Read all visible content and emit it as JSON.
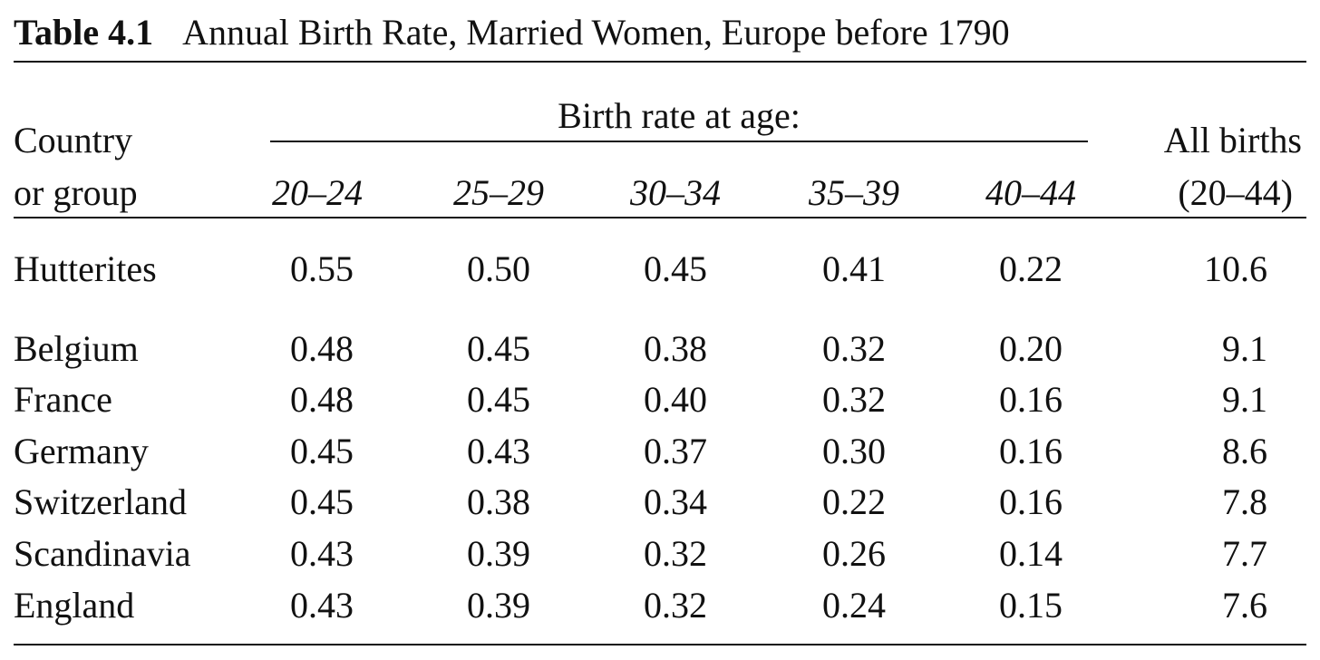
{
  "table": {
    "number": "Table 4.1",
    "title": "Annual Birth Rate, Married Women, Europe before 1790",
    "header": {
      "country_line1": "Country",
      "country_line2": "or group",
      "span_label": "Birth rate at age:",
      "ages": [
        "20–24",
        "25–29",
        "30–34",
        "35–39",
        "40–44"
      ],
      "all_line1": "All births",
      "all_line2": "(20–44)"
    },
    "rows": [
      {
        "name": "Hutterites",
        "values": [
          "0.55",
          "0.50",
          "0.45",
          "0.41",
          "0.22"
        ],
        "total": "10.6"
      },
      {
        "name": "Belgium",
        "values": [
          "0.48",
          "0.45",
          "0.38",
          "0.32",
          "0.20"
        ],
        "total": "9.1"
      },
      {
        "name": "France",
        "values": [
          "0.48",
          "0.45",
          "0.40",
          "0.32",
          "0.16"
        ],
        "total": "9.1"
      },
      {
        "name": "Germany",
        "values": [
          "0.45",
          "0.43",
          "0.37",
          "0.30",
          "0.16"
        ],
        "total": "8.6"
      },
      {
        "name": "Switzerland",
        "values": [
          "0.45",
          "0.38",
          "0.34",
          "0.22",
          "0.16"
        ],
        "total": "7.8"
      },
      {
        "name": "Scandinavia",
        "values": [
          "0.43",
          "0.39",
          "0.32",
          "0.26",
          "0.14"
        ],
        "total": "7.7"
      },
      {
        "name": "England",
        "values": [
          "0.43",
          "0.39",
          "0.32",
          "0.24",
          "0.15"
        ],
        "total": "7.6"
      }
    ]
  }
}
